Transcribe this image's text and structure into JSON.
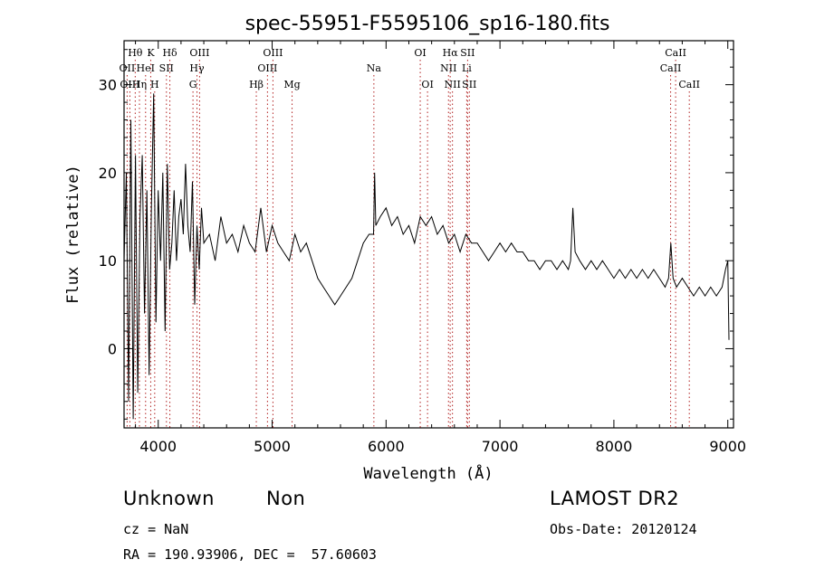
{
  "chart_data": {
    "type": "line",
    "title": "spec-55951-F5595106_sp16-180.fits",
    "xlabel": "Wavelength (Å)",
    "ylabel": "Flux (relative)",
    "xlim": [
      3700,
      9050
    ],
    "ylim": [
      -9,
      35
    ],
    "xticks": [
      4000,
      5000,
      6000,
      7000,
      8000,
      9000
    ],
    "yticks": [
      0,
      10,
      20,
      30
    ],
    "grid": false,
    "series": [
      {
        "x": [
          3700,
          3720,
          3740,
          3760,
          3780,
          3800,
          3820,
          3840,
          3860,
          3880,
          3900,
          3920,
          3940,
          3960,
          3980,
          4000,
          4020,
          4040,
          4060,
          4080,
          4100,
          4120,
          4140,
          4160,
          4180,
          4200,
          4220,
          4240,
          4260,
          4280,
          4300,
          4320,
          4340,
          4360,
          4380,
          4400,
          4450,
          4500,
          4550,
          4600,
          4650,
          4700,
          4750,
          4800,
          4850,
          4900,
          4950,
          5000,
          5050,
          5100,
          5150,
          5200,
          5250,
          5300,
          5350,
          5400,
          5450,
          5500,
          5550,
          5600,
          5650,
          5700,
          5750,
          5800,
          5850,
          5890,
          5900,
          5910,
          5950,
          6000,
          6050,
          6100,
          6150,
          6200,
          6250,
          6300,
          6350,
          6400,
          6450,
          6500,
          6550,
          6600,
          6650,
          6700,
          6750,
          6800,
          6850,
          6900,
          6950,
          7000,
          7050,
          7100,
          7150,
          7200,
          7250,
          7300,
          7350,
          7400,
          7450,
          7500,
          7550,
          7600,
          7620,
          7640,
          7660,
          7700,
          7750,
          7800,
          7850,
          7900,
          7950,
          8000,
          8050,
          8100,
          8150,
          8200,
          8250,
          8300,
          8350,
          8400,
          8450,
          8480,
          8500,
          8520,
          8550,
          8600,
          8650,
          8700,
          8750,
          8800,
          8850,
          8900,
          8950,
          8980,
          9000,
          9010
        ],
        "values": [
          10,
          20,
          -6,
          26,
          -8,
          22,
          -5,
          15,
          22,
          4,
          18,
          -3,
          16,
          29,
          3,
          18,
          10,
          20,
          2,
          21,
          9,
          12,
          18,
          10,
          15,
          17,
          13,
          21,
          14,
          11,
          19,
          5,
          14,
          9,
          16,
          12,
          13,
          10,
          15,
          12,
          13,
          11,
          14,
          12,
          11,
          16,
          11,
          14,
          12,
          11,
          10,
          13,
          11,
          12,
          10,
          8,
          7,
          6,
          5,
          6,
          7,
          8,
          10,
          12,
          13,
          13,
          20,
          14,
          15,
          16,
          14,
          15,
          13,
          14,
          12,
          15,
          14,
          15,
          13,
          14,
          12,
          13,
          11,
          13,
          12,
          12,
          11,
          10,
          11,
          12,
          11,
          12,
          11,
          11,
          10,
          10,
          9,
          10,
          10,
          9,
          10,
          9,
          10,
          16,
          11,
          10,
          9,
          10,
          9,
          10,
          9,
          8,
          9,
          8,
          9,
          8,
          9,
          8,
          9,
          8,
          7,
          8,
          12,
          8,
          7,
          8,
          7,
          6,
          7,
          6,
          7,
          6,
          7,
          9,
          10,
          1
        ]
      }
    ],
    "annotations": [
      {
        "label": "Hθ",
        "x": 3798,
        "row": 1
      },
      {
        "label": "K",
        "x": 3934,
        "row": 1
      },
      {
        "label": "Hδ",
        "x": 4102,
        "row": 1
      },
      {
        "label": "OIII",
        "x": 4363,
        "row": 1
      },
      {
        "label": "OIII",
        "x": 5007,
        "row": 1
      },
      {
        "label": "OI",
        "x": 6300,
        "row": 1
      },
      {
        "label": "Hα",
        "x": 6563,
        "row": 1
      },
      {
        "label": "SII",
        "x": 6716,
        "row": 1
      },
      {
        "label": "CaII",
        "x": 8542,
        "row": 1
      },
      {
        "label": "OII",
        "x": 3727,
        "row": 2
      },
      {
        "label": "HeI",
        "x": 3889,
        "row": 2
      },
      {
        "label": "SII",
        "x": 4072,
        "row": 2
      },
      {
        "label": "Hγ",
        "x": 4340,
        "row": 2
      },
      {
        "label": "OIII",
        "x": 4959,
        "row": 2
      },
      {
        "label": "Na",
        "x": 5893,
        "row": 2
      },
      {
        "label": "NII",
        "x": 6548,
        "row": 2
      },
      {
        "label": "Li",
        "x": 6708,
        "row": 2
      },
      {
        "label": "CaII",
        "x": 8498,
        "row": 2
      },
      {
        "label": "OIII",
        "x": 3751,
        "row": 3
      },
      {
        "label": "Hη",
        "x": 3835,
        "row": 3
      },
      {
        "label": "H",
        "x": 3969,
        "row": 3
      },
      {
        "label": "G",
        "x": 4305,
        "row": 3
      },
      {
        "label": "Hβ",
        "x": 4861,
        "row": 3
      },
      {
        "label": "Mg",
        "x": 5175,
        "row": 3
      },
      {
        "label": "OI",
        "x": 6364,
        "row": 3
      },
      {
        "label": "NII",
        "x": 6583,
        "row": 3
      },
      {
        "label": "SII",
        "x": 6731,
        "row": 3
      },
      {
        "label": "CaII",
        "x": 8662,
        "row": 3
      }
    ],
    "line_color": "#000000",
    "marker_color": "#b22222"
  },
  "info": {
    "class_label": "Unknown",
    "subclass_label": "Non",
    "survey": "LAMOST DR2",
    "cz": "cz = NaN",
    "obs_date": "Obs-Date: 20120124",
    "coords": "RA = 190.93906, DEC =  57.60603"
  }
}
